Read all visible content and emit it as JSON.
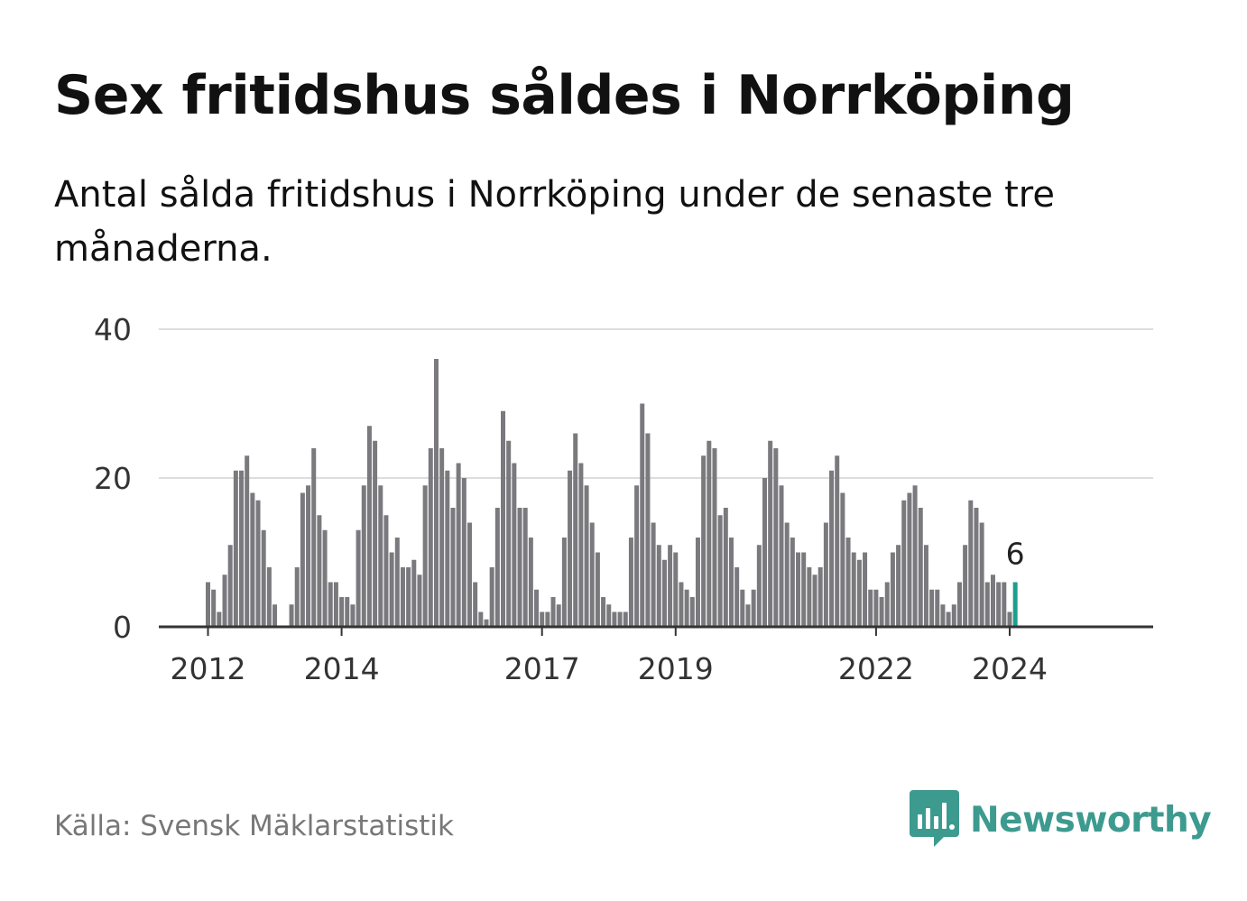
{
  "title": "Sex fritidshus såldes i Norrköping",
  "subtitle": "Antal sålda fritidshus i Norrköping under de senaste tre månaderna.",
  "source": "Källa: Svensk Mäklarstatistik",
  "brand": {
    "name": "Newsworthy",
    "color": "#3d9a8f"
  },
  "colors": {
    "bar": "#7a797e",
    "highlight": "#1e9e8e",
    "grid": "#dddddd",
    "axis": "#333333"
  },
  "chart_data": {
    "type": "bar",
    "title": "Sex fritidshus såldes i Norrköping",
    "subtitle": "Antal sålda fritidshus i Norrköping under de senaste tre månaderna.",
    "xlabel": "",
    "ylabel": "",
    "ylim": [
      0,
      40
    ],
    "yticks": [
      "0",
      "20",
      "40"
    ],
    "grid": true,
    "x_tick_labels": [
      "2012",
      "2014",
      "2017",
      "2019",
      "2022",
      "2024"
    ],
    "x_tick_months": [
      0,
      24,
      60,
      84,
      120,
      144
    ],
    "annotation": {
      "label": "6",
      "value": 6
    },
    "series": [
      {
        "values": [
          6,
          5,
          2,
          7,
          11,
          21,
          21,
          23,
          18,
          17,
          13,
          8,
          3,
          0,
          0,
          3,
          8,
          18,
          19,
          24,
          15,
          13,
          6,
          6,
          4,
          4,
          3,
          13,
          19,
          27,
          25,
          19,
          15,
          10,
          12,
          8,
          8,
          9,
          7,
          19,
          24,
          36,
          24,
          21,
          16,
          22,
          20,
          14,
          6,
          2,
          1,
          8,
          16,
          29,
          25,
          22,
          16,
          16,
          12,
          5,
          2,
          2,
          4,
          3,
          12,
          21,
          26,
          22,
          19,
          14,
          10,
          4,
          3,
          2,
          2,
          2,
          12,
          19,
          30,
          26,
          14,
          11,
          9,
          11,
          10,
          6,
          5,
          4,
          12,
          23,
          25,
          24,
          15,
          16,
          12,
          8,
          5,
          3,
          5,
          11,
          20,
          25,
          24,
          19,
          14,
          12,
          10,
          10,
          8,
          7,
          8,
          14,
          21,
          23,
          18,
          12,
          10,
          9,
          10,
          5,
          5,
          4,
          6,
          10,
          11,
          17,
          18,
          19,
          16,
          11,
          5,
          5,
          3,
          2,
          3,
          6,
          11,
          17,
          16,
          14,
          6,
          7,
          6,
          6,
          2,
          6
        ]
      }
    ]
  }
}
